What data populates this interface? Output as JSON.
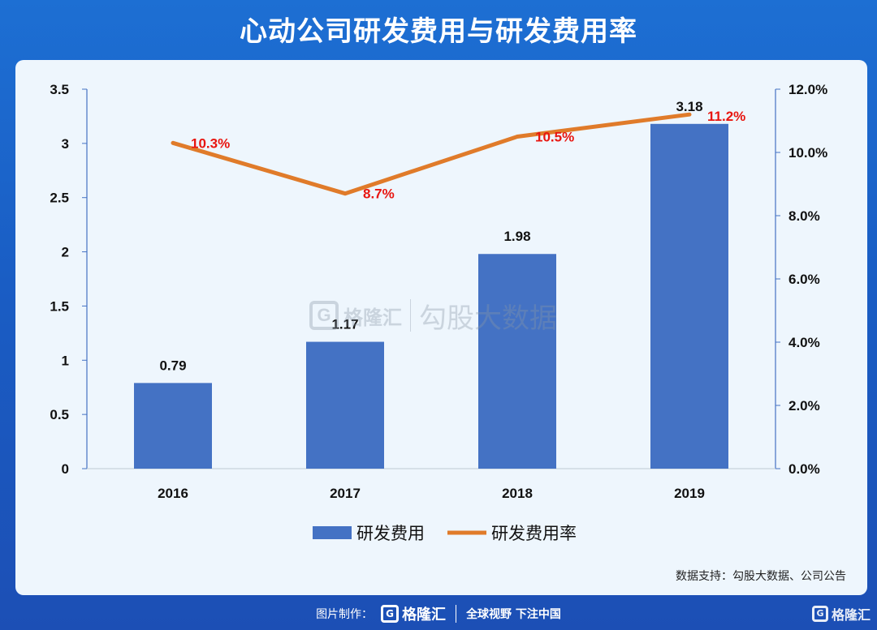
{
  "title": "心动公司研发费用与研发费用率",
  "source": "数据支持：勾股大数据、公司公告",
  "watermark": {
    "logo": "G",
    "brand": "格隆汇",
    "text": "勾股大数据"
  },
  "footer": {
    "made_by": "图片制作：",
    "logo": "G",
    "brand": "格隆汇",
    "slogan": "全球视野 下注中国"
  },
  "corner": {
    "logo": "G",
    "brand": "格隆汇"
  },
  "colors": {
    "bar": "#4472c4",
    "line": "#e07b2a",
    "line_label": "#e8150f",
    "axis": "#4472c4"
  },
  "chart_data": {
    "type": "bar",
    "categories": [
      "2016",
      "2017",
      "2018",
      "2019"
    ],
    "series": [
      {
        "name": "研发费用",
        "type": "bar",
        "axis": "left",
        "values": [
          0.79,
          1.17,
          1.98,
          3.18
        ],
        "labels": [
          "0.79",
          "1.17",
          "1.98",
          "3.18"
        ]
      },
      {
        "name": "研发费用率",
        "type": "line",
        "axis": "right",
        "values": [
          10.3,
          8.7,
          10.5,
          11.2
        ],
        "labels": [
          "10.3%",
          "8.7%",
          "10.5%",
          "11.2%"
        ]
      }
    ],
    "y_left": {
      "min": 0,
      "max": 3.5,
      "ticks": [
        "0",
        "0.5",
        "1",
        "1.5",
        "2",
        "2.5",
        "3",
        "3.5"
      ]
    },
    "y_right": {
      "min": 0,
      "max": 12,
      "ticks": [
        "0.0%",
        "2.0%",
        "4.0%",
        "6.0%",
        "8.0%",
        "10.0%",
        "12.0%"
      ]
    },
    "grid": false,
    "legend": "bottom-center"
  }
}
